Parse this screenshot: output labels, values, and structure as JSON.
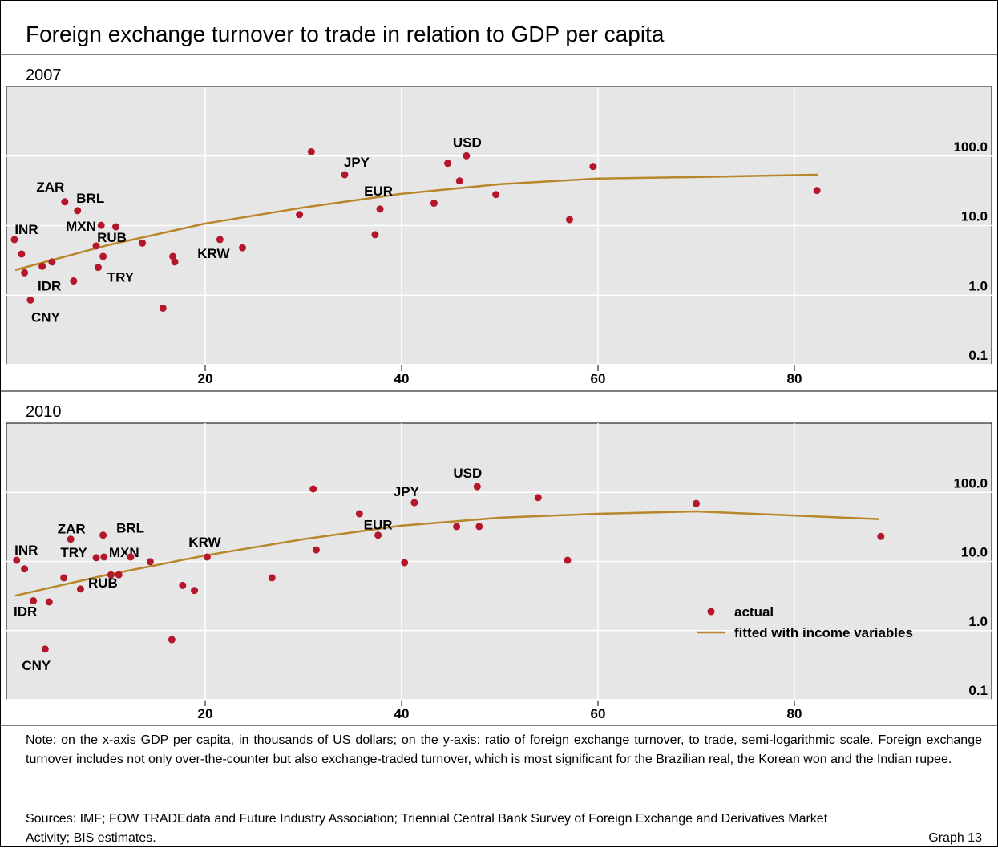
{
  "title": "Foreign exchange turnover to trade in relation to GDP per capita",
  "chart_data": [
    {
      "type": "scatter",
      "subtitle": "2007",
      "xlim": [
        0,
        100
      ],
      "xticks": [
        20,
        40,
        60,
        80
      ],
      "ylim": [
        0.1,
        1000
      ],
      "ylog": true,
      "grid": true,
      "yticks": [
        0.1,
        {
          "value": 1,
          "label": "1.0"
        },
        {
          "value": 10,
          "label": "10.0"
        },
        {
          "value": 100,
          "label": "100.0"
        }
      ],
      "series": [
        {
          "type": "scatter",
          "color": "#b5172a",
          "x": [
            0.57,
            1.3,
            1.6,
            2.2,
            3.4,
            4.4,
            5.7,
            6.6,
            7.0,
            8.9,
            9.4,
            9.1,
            9.6,
            10.9,
            13.6,
            15.7,
            16.7,
            16.9,
            21.5,
            23.8,
            29.6,
            30.8,
            34.2,
            37.3,
            37.8,
            43.3,
            44.7,
            45.9,
            46.6,
            49.6,
            57.1,
            59.5,
            82.3
          ],
          "values": [
            6.3,
            3.9,
            2.1,
            0.85,
            2.6,
            3.0,
            22,
            1.6,
            16.4,
            5.1,
            10.1,
            2.5,
            3.6,
            9.6,
            5.6,
            0.65,
            3.6,
            3.0,
            6.3,
            4.8,
            14.4,
            115,
            54,
            7.4,
            17.3,
            21,
            79,
            44,
            101,
            28,
            12.2,
            71,
            32
          ],
          "point_labels": [
            "INR",
            null,
            null,
            "CNY",
            "IDR",
            null,
            "ZAR",
            null,
            "BRL",
            "MXN",
            null,
            "TRY",
            null,
            "RUB",
            null,
            null,
            null,
            null,
            "KRW",
            null,
            null,
            null,
            "JPY",
            null,
            "EUR",
            null,
            null,
            null,
            "USD",
            null,
            null,
            null,
            null
          ]
        },
        {
          "type": "line",
          "color": "#b8862b",
          "x": [
            0.65,
            10,
            20,
            30,
            40,
            50,
            60,
            70,
            82.4
          ],
          "values": [
            2.3,
            5.2,
            10.7,
            18.2,
            28.7,
            39.5,
            47.6,
            50,
            54
          ]
        }
      ]
    },
    {
      "type": "scatter",
      "subtitle": "2010",
      "xlim": [
        0,
        100
      ],
      "xticks": [
        20,
        40,
        60,
        80
      ],
      "ylim": [
        0.1,
        1000
      ],
      "ylog": true,
      "grid": true,
      "legend": "lower right",
      "yticks": [
        0.1,
        {
          "value": 1,
          "label": "1.0"
        },
        {
          "value": 10,
          "label": "10.0"
        },
        {
          "value": 100,
          "label": "100.0"
        }
      ],
      "series": [
        {
          "type": "scatter",
          "name": "actual",
          "color": "#b5172a",
          "x": [
            0.8,
            1.6,
            2.5,
            4.1,
            3.7,
            5.6,
            6.3,
            7.3,
            8.9,
            9.6,
            9.7,
            10.4,
            11.2,
            12.4,
            14.4,
            16.6,
            17.7,
            18.9,
            20.2,
            26.8,
            31.0,
            31.3,
            35.7,
            37.6,
            40.3,
            41.3,
            45.6,
            47.7,
            47.9,
            53.9,
            56.9,
            70.0,
            88.8
          ],
          "values": [
            10.4,
            7.8,
            2.7,
            2.6,
            0.54,
            5.8,
            21,
            4.0,
            11.3,
            24,
            11.6,
            6.4,
            6.4,
            11.6,
            9.9,
            0.74,
            4.5,
            3.8,
            11.6,
            5.8,
            112,
            14.7,
            49,
            24,
            9.6,
            71,
            32,
            121,
            32,
            84,
            10.4,
            69,
            23
          ],
          "point_labels": [
            "INR",
            null,
            "IDR",
            null,
            "CNY",
            null,
            "ZAR",
            "RUB",
            "TRY",
            "BRL",
            "MXN",
            null,
            null,
            null,
            null,
            null,
            null,
            null,
            "KRW",
            null,
            null,
            null,
            null,
            "EUR",
            null,
            "JPY",
            null,
            "USD",
            null,
            null,
            null,
            null,
            null
          ]
        },
        {
          "type": "line",
          "name": "fitted with income variables",
          "color": "#b8862b",
          "x": [
            0.65,
            10,
            20,
            30,
            40,
            50,
            60,
            70,
            88.6
          ],
          "values": [
            3.2,
            6.4,
            12.2,
            21,
            33,
            43,
            49,
            53,
            41
          ]
        }
      ]
    }
  ],
  "note": "Note: on the x-axis GDP per capita, in thousands of US dollars; on the y-axis: ratio of foreign exchange turnover, to trade, semi-logarithmic scale. Foreign exchange turnover includes not only over-the-counter but also exchange-traded turnover, which is most significant for the Brazilian real, the Korean won and the Indian rupee.",
  "sources": "Sources: IMF; FOW TRADEdata and Future Industry Association; Triennial Central Bank Survey of Foreign Exchange and Derivatives Market Activity; BIS estimates.",
  "graph_label": "Graph 13"
}
